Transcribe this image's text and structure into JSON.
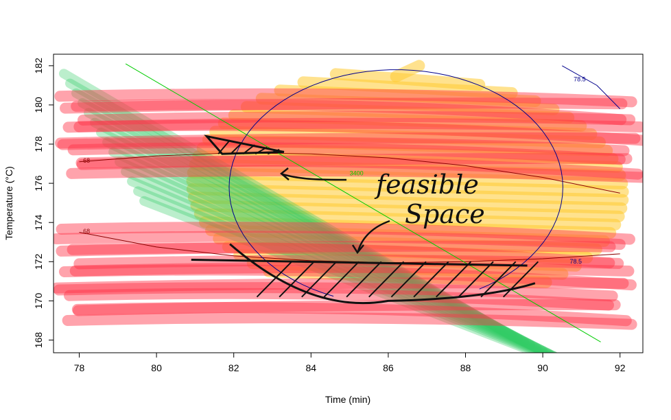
{
  "chart_data": {
    "type": "contour",
    "xlabel": "Time (min)",
    "ylabel": "Temperature (°C)",
    "xlim": [
      77.5,
      92.6
    ],
    "ylim": [
      167.5,
      182.6
    ],
    "x_ticks": [
      "78",
      "80",
      "82",
      "84",
      "86",
      "88",
      "90",
      "92"
    ],
    "x_tick_values": [
      78,
      80,
      82,
      84,
      86,
      88,
      90,
      92
    ],
    "y_ticks": [
      "168",
      "170",
      "172",
      "174",
      "176",
      "178",
      "180",
      "182"
    ],
    "y_tick_values": [
      168,
      170,
      172,
      174,
      176,
      178,
      180,
      182
    ],
    "contours": [
      {
        "label": "68",
        "color": "#8b0000",
        "points": [
          [
            78,
            177.1
          ],
          [
            80,
            177.4
          ],
          [
            82,
            177.55
          ],
          [
            84,
            177.5
          ],
          [
            86,
            177.3
          ],
          [
            88,
            176.9
          ],
          [
            90,
            176.3
          ],
          [
            92,
            175.5
          ]
        ]
      },
      {
        "label": "68",
        "color": "#8b0000",
        "points": [
          [
            78,
            173.5
          ],
          [
            80,
            172.75
          ],
          [
            82,
            172.3
          ],
          [
            84,
            172.05
          ],
          [
            86,
            171.95
          ],
          [
            88,
            172.0
          ],
          [
            90,
            172.15
          ],
          [
            92,
            172.4
          ]
        ]
      },
      {
        "label": "3400",
        "color": "#00cc00",
        "points": [
          [
            79.2,
            182.1
          ],
          [
            91.5,
            167.9
          ]
        ]
      },
      {
        "label": "78.5",
        "color": "#00008b",
        "kind": "ellipse",
        "center": [
          86.2,
          175.8
        ],
        "rx": 6.0,
        "ry": 6.0,
        "theta_range": [
          -60,
          250
        ]
      },
      {
        "label": "78.5",
        "color": "#00008b",
        "points": [
          [
            90.5,
            182.0
          ],
          [
            91.4,
            181.0
          ],
          [
            92.0,
            179.8
          ]
        ]
      }
    ],
    "contour_label_positions": [
      [
        78.1,
        177.05,
        "68"
      ],
      [
        78.1,
        173.45,
        "68"
      ],
      [
        85.0,
        176.4,
        "3400"
      ],
      [
        90.8,
        181.2,
        "78.5"
      ],
      [
        90.7,
        171.9,
        "78.5"
      ]
    ],
    "highlights": [
      {
        "name": "red-band-upper",
        "color": "#ff3347",
        "y_range": [
          176.5,
          180.4
        ]
      },
      {
        "name": "red-band-lower",
        "color": "#ff3347",
        "y_range": [
          169.0,
          173.5
        ]
      },
      {
        "name": "yellow-region",
        "color": "#ffcc33",
        "shape": "ellipse"
      },
      {
        "name": "green-band",
        "color": "#33cc66",
        "shape": "diagonal"
      }
    ],
    "annotation": "feasible space",
    "annotation_lines": [
      "feasible",
      "Space"
    ]
  }
}
